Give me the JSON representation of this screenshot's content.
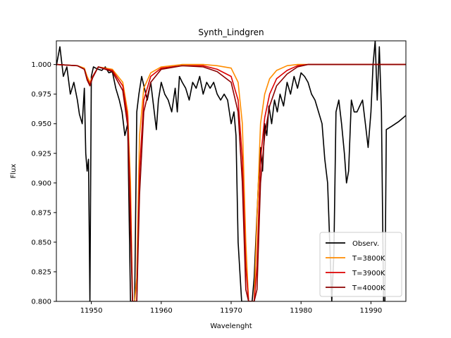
{
  "chart_data": {
    "type": "line",
    "title": "Synth_Lindgren",
    "xlabel": "Wavelenght",
    "ylabel": "Flux",
    "xlim": [
      11945,
      11995
    ],
    "ylim": [
      0.8,
      1.02
    ],
    "xticks": [
      11950,
      11960,
      11970,
      11980,
      11990
    ],
    "yticks": [
      "0.800",
      "0.825",
      "0.850",
      "0.875",
      "0.900",
      "0.925",
      "0.950",
      "0.975",
      "1.000"
    ],
    "grid": false,
    "legend_position": "lower-right",
    "series": [
      {
        "name": "Observ.",
        "color": "#000000",
        "x": [
          11945.0,
          11945.5,
          11946.0,
          11946.5,
          11947.0,
          11947.5,
          11948.0,
          11948.3,
          11948.7,
          11949.0,
          11949.2,
          11949.4,
          11949.6,
          11949.8,
          11950.0,
          11950.3,
          11950.6,
          11951.0,
          11951.5,
          11952.0,
          11952.5,
          11953.0,
          11953.5,
          11954.0,
          11954.4,
          11954.8,
          11955.2,
          11955.6,
          11955.9,
          11956.2,
          11956.5,
          11956.8,
          11957.2,
          11957.6,
          11958.0,
          11958.5,
          11959.0,
          11959.3,
          11959.6,
          11960.0,
          11960.5,
          11961.0,
          11961.5,
          11962.0,
          11962.3,
          11962.6,
          11963.0,
          11963.5,
          11964.0,
          11964.5,
          11965.0,
          11965.5,
          11966.0,
          11966.5,
          11967.0,
          11967.5,
          11968.0,
          11968.5,
          11969.0,
          11969.5,
          11970.0,
          11970.4,
          11970.7,
          11971.0,
          11971.2,
          11971.5,
          11971.8,
          11972.1,
          11972.4,
          11972.7,
          11973.0,
          11973.3,
          11973.6,
          11973.9,
          11974.2,
          11974.5,
          11974.8,
          11975.1,
          11975.4,
          11975.8,
          11976.2,
          11976.6,
          11977.0,
          11977.5,
          11978.0,
          11978.5,
          11979.0,
          11979.5,
          11980.0,
          11980.5,
          11981.0,
          11981.5,
          11982.0,
          11982.5,
          11983.0,
          11983.4,
          11983.8,
          11984.1,
          11984.4,
          11984.7,
          11985.0,
          11985.4,
          11985.8,
          11986.2,
          11986.5,
          11986.8,
          11987.2,
          11987.6,
          11988.0,
          11988.4,
          11988.8,
          11989.2,
          11989.6,
          11990.0,
          11990.3,
          11990.6,
          11990.9,
          11991.2,
          11991.5,
          11991.8,
          11992.0,
          11992.2,
          11993.0,
          11994.0,
          11995.0
        ],
        "values": [
          0.999,
          1.015,
          0.99,
          0.998,
          0.975,
          0.985,
          0.97,
          0.958,
          0.95,
          0.98,
          0.925,
          0.91,
          0.92,
          0.8,
          0.99,
          0.998,
          0.997,
          0.996,
          0.995,
          0.998,
          0.993,
          0.994,
          0.98,
          0.97,
          0.96,
          0.94,
          0.95,
          0.8,
          0.8,
          0.8,
          0.96,
          0.975,
          0.99,
          0.98,
          0.97,
          0.985,
          0.96,
          0.945,
          0.97,
          0.985,
          0.975,
          0.97,
          0.96,
          0.98,
          0.96,
          0.99,
          0.985,
          0.98,
          0.97,
          0.985,
          0.98,
          0.99,
          0.975,
          0.985,
          0.98,
          0.985,
          0.975,
          0.97,
          0.975,
          0.97,
          0.95,
          0.96,
          0.94,
          0.85,
          0.83,
          0.8,
          0.8,
          0.8,
          0.8,
          0.8,
          0.8,
          0.82,
          0.86,
          0.9,
          0.93,
          0.91,
          0.95,
          0.94,
          0.965,
          0.95,
          0.97,
          0.96,
          0.975,
          0.965,
          0.985,
          0.975,
          0.99,
          0.98,
          0.993,
          0.99,
          0.985,
          0.975,
          0.97,
          0.96,
          0.95,
          0.92,
          0.9,
          0.85,
          0.8,
          0.84,
          0.96,
          0.97,
          0.95,
          0.925,
          0.9,
          0.91,
          0.97,
          0.96,
          0.96,
          0.965,
          0.97,
          0.95,
          0.93,
          0.96,
          1.0,
          1.02,
          0.97,
          1.015,
          0.96,
          0.8,
          0.8,
          0.945,
          0.948,
          0.952,
          0.957
        ]
      },
      {
        "name": "T=3800K",
        "color": "#ff8c00",
        "x": [
          11945.0,
          11948.0,
          11949.0,
          11949.4,
          11949.8,
          11950.2,
          11951.0,
          11953.0,
          11954.5,
          11955.2,
          11955.6,
          11955.9,
          11956.2,
          11956.5,
          11956.9,
          11957.5,
          11958.5,
          11960.0,
          11963.0,
          11966.0,
          11968.0,
          11970.0,
          11971.0,
          11971.6,
          11972.1,
          11972.5,
          11972.9,
          11973.3,
          11973.7,
          11974.2,
          11974.8,
          11975.5,
          11976.5,
          11978.0,
          11979.5,
          11981.0,
          11983.0,
          11995.0
        ],
        "values": [
          1.0,
          0.999,
          0.997,
          0.99,
          0.985,
          0.99,
          0.998,
          0.996,
          0.985,
          0.96,
          0.9,
          0.8,
          0.8,
          0.82,
          0.94,
          0.98,
          0.993,
          0.998,
          1.0,
          1.0,
          0.999,
          0.997,
          0.985,
          0.95,
          0.85,
          0.8,
          0.8,
          0.8,
          0.87,
          0.95,
          0.975,
          0.988,
          0.995,
          0.999,
          1.0,
          1.0,
          1.0,
          1.0
        ]
      },
      {
        "name": "T=3900K",
        "color": "#dd0000",
        "x": [
          11945.0,
          11948.0,
          11949.0,
          11949.4,
          11949.8,
          11950.2,
          11951.0,
          11953.0,
          11954.5,
          11955.2,
          11955.6,
          11955.9,
          11956.2,
          11956.5,
          11956.9,
          11957.5,
          11958.5,
          11960.0,
          11963.0,
          11966.0,
          11968.0,
          11970.0,
          11971.0,
          11971.6,
          11972.1,
          11972.5,
          11972.9,
          11973.3,
          11973.7,
          11974.2,
          11974.8,
          11975.5,
          11976.5,
          11978.0,
          11979.5,
          11981.0,
          11983.0,
          11995.0
        ],
        "values": [
          1.0,
          0.999,
          0.996,
          0.988,
          0.983,
          0.99,
          0.998,
          0.995,
          0.982,
          0.955,
          0.88,
          0.8,
          0.8,
          0.8,
          0.91,
          0.97,
          0.99,
          0.997,
          0.999,
          0.999,
          0.996,
          0.99,
          0.97,
          0.92,
          0.83,
          0.8,
          0.8,
          0.8,
          0.83,
          0.92,
          0.955,
          0.975,
          0.988,
          0.995,
          0.999,
          1.0,
          1.0,
          1.0
        ]
      },
      {
        "name": "T=4000K",
        "color": "#8b0000",
        "x": [
          11945.0,
          11948.0,
          11949.0,
          11949.4,
          11949.8,
          11950.2,
          11951.0,
          11953.0,
          11954.5,
          11955.2,
          11955.6,
          11955.9,
          11956.2,
          11956.5,
          11956.9,
          11957.5,
          11958.5,
          11960.0,
          11963.0,
          11966.0,
          11968.0,
          11970.0,
          11971.0,
          11971.6,
          11972.1,
          11972.5,
          11972.9,
          11973.3,
          11973.7,
          11974.2,
          11974.8,
          11975.5,
          11976.5,
          11978.0,
          11979.5,
          11981.0,
          11983.0,
          11995.0
        ],
        "values": [
          1.0,
          0.999,
          0.996,
          0.987,
          0.982,
          0.989,
          0.998,
          0.994,
          0.978,
          0.948,
          0.86,
          0.8,
          0.8,
          0.8,
          0.89,
          0.96,
          0.985,
          0.996,
          0.999,
          0.998,
          0.994,
          0.985,
          0.96,
          0.9,
          0.81,
          0.8,
          0.8,
          0.8,
          0.81,
          0.9,
          0.94,
          0.965,
          0.982,
          0.992,
          0.998,
          1.0,
          1.0,
          1.0
        ]
      }
    ]
  }
}
